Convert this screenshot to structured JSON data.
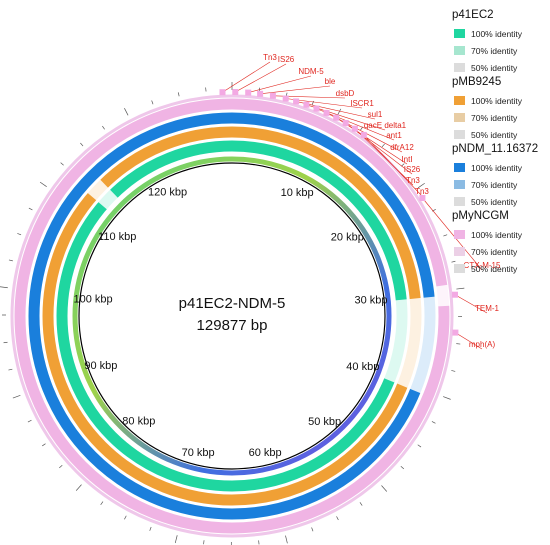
{
  "plasmid": {
    "name": "p41EC2-NDM-5",
    "size": "129877 bp",
    "total_bp": 129877
  },
  "kbp_labels": [
    {
      "kbp": 10,
      "label": "10 kbp"
    },
    {
      "kbp": 20,
      "label": "20 kbp"
    },
    {
      "kbp": 30,
      "label": "30 kbp"
    },
    {
      "kbp": 40,
      "label": "40 kbp"
    },
    {
      "kbp": 50,
      "label": "50 kbp"
    },
    {
      "kbp": 60,
      "label": "60 kbp"
    },
    {
      "kbp": 70,
      "label": "70 kbp"
    },
    {
      "kbp": 80,
      "label": "80 kbp"
    },
    {
      "kbp": 90,
      "label": "90 kbp"
    },
    {
      "kbp": 100,
      "label": "100 kbp"
    },
    {
      "kbp": 110,
      "label": "110 kbp"
    },
    {
      "kbp": 120,
      "label": "120 kbp"
    }
  ],
  "rings": [
    {
      "name": "p41EC2",
      "color": "#1fd6a0"
    },
    {
      "name": "pMB9245",
      "color": "#f0a035"
    },
    {
      "name": "pNDM_11.16372",
      "color": "#1a7fdc"
    },
    {
      "name": "pMyNCGM",
      "color": "#f0b4e4"
    }
  ],
  "legend": [
    {
      "title": "p41EC2",
      "items": [
        {
          "label": "100% identity",
          "color": "#1fd6a0"
        },
        {
          "label": "70% identity",
          "color": "#a6e6cf"
        },
        {
          "label": "50% identity",
          "color": "#dcdcdc"
        }
      ]
    },
    {
      "title": "pMB9245",
      "items": [
        {
          "label": "100% identity",
          "color": "#f0a035"
        },
        {
          "label": "70% identity",
          "color": "#e8cda4"
        },
        {
          "label": "50% identity",
          "color": "#dcdcdc"
        }
      ]
    },
    {
      "title": "pNDM_11.16372",
      "items": [
        {
          "label": "100% identity",
          "color": "#1a7fdc"
        },
        {
          "label": "70% identity",
          "color": "#8bbbe3"
        },
        {
          "label": "50% identity",
          "color": "#dcdcdc"
        }
      ]
    },
    {
      "title": "pMyNCGM",
      "items": [
        {
          "label": "100% identity",
          "color": "#f0b4e4"
        },
        {
          "label": "70% identity",
          "color": "#ecd0e6"
        },
        {
          "label": "50% identity",
          "color": "#dcdcdc"
        }
      ]
    }
  ],
  "genes": [
    {
      "label": "Tn3",
      "kbp": 129.0
    },
    {
      "label": "IS26",
      "kbp": 0.3
    },
    {
      "label": "NDM-5",
      "kbp": 1.5
    },
    {
      "label": "ble",
      "kbp": 2.6
    },
    {
      "label": "dsbD",
      "kbp": 3.8
    },
    {
      "label": "ISCR1",
      "kbp": 5.0
    },
    {
      "label": "sul1",
      "kbp": 6.0
    },
    {
      "label": "qacE delta1",
      "kbp": 7.0
    },
    {
      "label": "ant1",
      "kbp": 8.0
    },
    {
      "label": "dfrA12",
      "kbp": 9.0
    },
    {
      "label": "IntI",
      "kbp": 10.0
    },
    {
      "label": "IS26",
      "kbp": 11.0
    },
    {
      "label": "Tn3",
      "kbp": 12.0
    },
    {
      "label": "Tn3",
      "kbp": 13.0
    },
    {
      "label": "CTX-M-15",
      "kbp": 21.0
    },
    {
      "label": "TEM-1",
      "kbp": 30.5
    },
    {
      "label": "mph(A)",
      "kbp": 34.0
    }
  ],
  "gaps": [
    {
      "ring": 0,
      "start": 30.5,
      "end": 40.5
    },
    {
      "ring": 1,
      "start": 30.5,
      "end": 40.5
    },
    {
      "ring": 2,
      "start": 30.5,
      "end": 40.5
    },
    {
      "ring": 3,
      "start": 29.5,
      "end": 31.5
    },
    {
      "ring": 0,
      "start": 112.0,
      "end": 114.0
    },
    {
      "ring": 1,
      "start": 112.0,
      "end": 114.0
    }
  ]
}
